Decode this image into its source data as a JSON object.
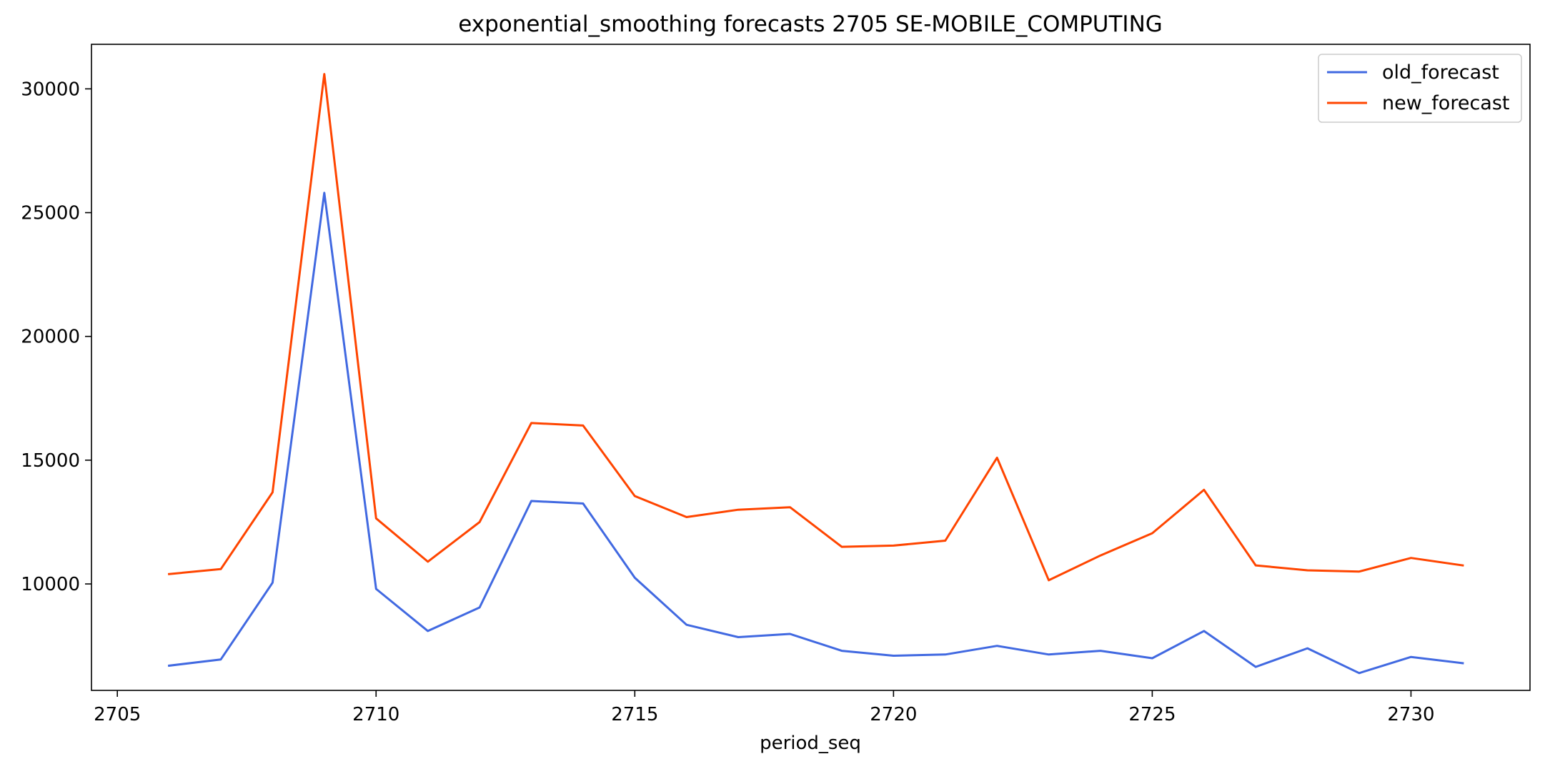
{
  "chart_data": {
    "type": "line",
    "title": "exponential_smoothing forecasts 2705 SE-MOBILE_COMPUTING",
    "xlabel": "period_seq",
    "ylabel": "",
    "xlim": [
      2704.5,
      2732.3
    ],
    "ylim": [
      5700,
      31800
    ],
    "x_ticks": [
      2705,
      2710,
      2715,
      2720,
      2725,
      2730
    ],
    "y_ticks": [
      10000,
      15000,
      20000,
      25000,
      30000
    ],
    "grid": false,
    "legend_position": "top-right",
    "x": [
      2706,
      2707,
      2708,
      2709,
      2710,
      2711,
      2712,
      2713,
      2714,
      2715,
      2716,
      2717,
      2718,
      2719,
      2720,
      2721,
      2722,
      2723,
      2724,
      2725,
      2726,
      2727,
      2728,
      2729,
      2730,
      2731
    ],
    "series": [
      {
        "name": "old_forecast",
        "color": "#4169e1",
        "values": [
          6700,
          6950,
          10050,
          25800,
          9800,
          8100,
          9050,
          13350,
          13250,
          10250,
          8350,
          7850,
          7980,
          7300,
          7100,
          7150,
          7500,
          7150,
          7300,
          7000,
          8100,
          6650,
          7400,
          6400,
          7050,
          6800
        ]
      },
      {
        "name": "new_forecast",
        "color": "#ff4500",
        "values": [
          10400,
          10600,
          13700,
          30600,
          12650,
          10900,
          12500,
          16500,
          16400,
          13550,
          12700,
          13000,
          13100,
          11500,
          11550,
          11750,
          15100,
          10150,
          11150,
          12050,
          13800,
          10750,
          10550,
          10500,
          11050,
          10750
        ]
      }
    ]
  }
}
